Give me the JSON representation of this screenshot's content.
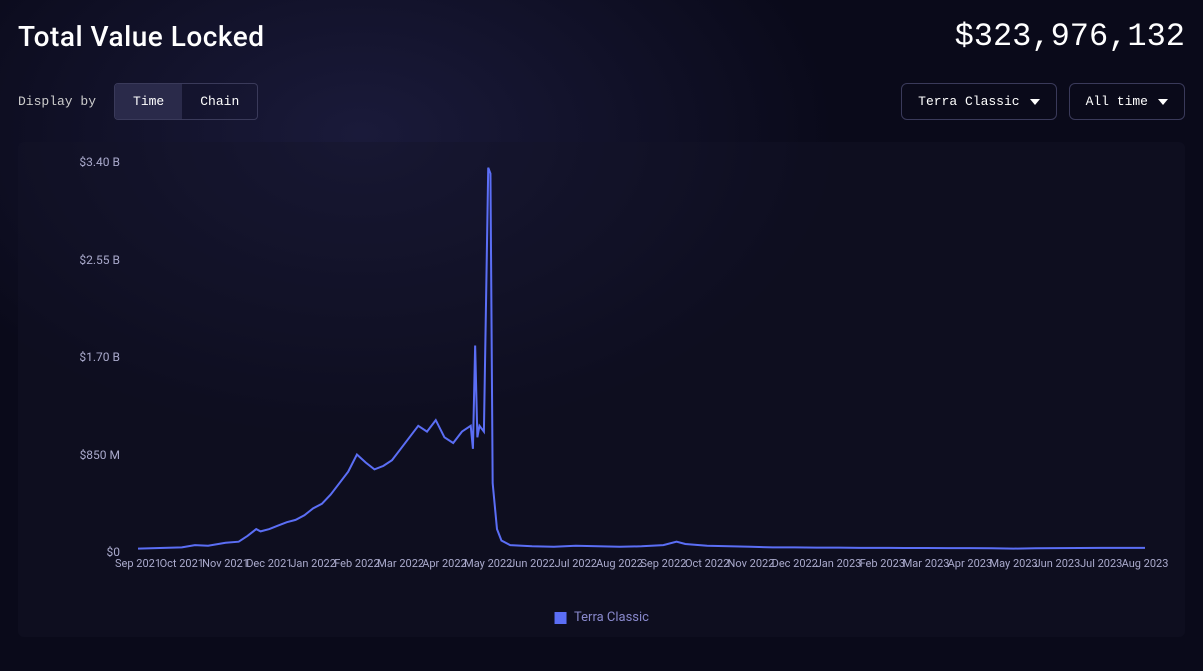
{
  "header": {
    "title": "Total Value Locked",
    "total_value": "$323,976,132"
  },
  "controls": {
    "display_by_label": "Display by",
    "toggle": {
      "time": "Time",
      "chain": "Chain",
      "active": "Time"
    },
    "chain_dropdown": "Terra Classic",
    "time_dropdown": "All time"
  },
  "chart": {
    "type": "line",
    "background_color": "rgba(20,20,40,0.4)",
    "line_color": "#5b6ef5",
    "line_width": 2,
    "text_color": "#aaaacc",
    "legend_label": "Terra Classic",
    "legend_color": "#5b6ef5",
    "y_axis": {
      "ticks": [
        {
          "value": 0,
          "label": "$0"
        },
        {
          "value": 850,
          "label": "$850 M"
        },
        {
          "value": 1700,
          "label": "$1.70 B"
        },
        {
          "value": 2550,
          "label": "$2.55 B"
        },
        {
          "value": 3400,
          "label": "$3.40 B"
        }
      ],
      "min": 0,
      "max": 3400
    },
    "x_axis": {
      "labels": [
        "Sep 2021",
        "Oct 2021",
        "Nov 2021",
        "Dec 2021",
        "Jan 2022",
        "Feb 2022",
        "Mar 2022",
        "Apr 2022",
        "May 2022",
        "Jun 2022",
        "Jul 2022",
        "Aug 2022",
        "Sep 2022",
        "Oct 2022",
        "Nov 2022",
        "Dec 2022",
        "Jan 2023",
        "Feb 2023",
        "Mar 2023",
        "Apr 2023",
        "May 2023",
        "Jun 2023",
        "Jul 2023",
        "Aug 2023"
      ]
    },
    "series": [
      {
        "x": 0.0,
        "y": 30
      },
      {
        "x": 0.5,
        "y": 35
      },
      {
        "x": 1.0,
        "y": 40
      },
      {
        "x": 1.3,
        "y": 60
      },
      {
        "x": 1.6,
        "y": 55
      },
      {
        "x": 2.0,
        "y": 80
      },
      {
        "x": 2.3,
        "y": 90
      },
      {
        "x": 2.5,
        "y": 140
      },
      {
        "x": 2.7,
        "y": 200
      },
      {
        "x": 2.8,
        "y": 180
      },
      {
        "x": 3.0,
        "y": 200
      },
      {
        "x": 3.2,
        "y": 230
      },
      {
        "x": 3.4,
        "y": 260
      },
      {
        "x": 3.6,
        "y": 280
      },
      {
        "x": 3.8,
        "y": 320
      },
      {
        "x": 4.0,
        "y": 380
      },
      {
        "x": 4.2,
        "y": 420
      },
      {
        "x": 4.4,
        "y": 500
      },
      {
        "x": 4.6,
        "y": 600
      },
      {
        "x": 4.8,
        "y": 700
      },
      {
        "x": 5.0,
        "y": 850
      },
      {
        "x": 5.2,
        "y": 780
      },
      {
        "x": 5.4,
        "y": 720
      },
      {
        "x": 5.6,
        "y": 750
      },
      {
        "x": 5.8,
        "y": 800
      },
      {
        "x": 6.0,
        "y": 900
      },
      {
        "x": 6.2,
        "y": 1000
      },
      {
        "x": 6.4,
        "y": 1100
      },
      {
        "x": 6.6,
        "y": 1050
      },
      {
        "x": 6.8,
        "y": 1150
      },
      {
        "x": 7.0,
        "y": 1000
      },
      {
        "x": 7.2,
        "y": 950
      },
      {
        "x": 7.4,
        "y": 1050
      },
      {
        "x": 7.6,
        "y": 1100
      },
      {
        "x": 7.65,
        "y": 900
      },
      {
        "x": 7.7,
        "y": 1800
      },
      {
        "x": 7.75,
        "y": 1000
      },
      {
        "x": 7.8,
        "y": 1100
      },
      {
        "x": 7.9,
        "y": 1050
      },
      {
        "x": 8.0,
        "y": 3350
      },
      {
        "x": 8.05,
        "y": 3300
      },
      {
        "x": 8.1,
        "y": 600
      },
      {
        "x": 8.2,
        "y": 200
      },
      {
        "x": 8.3,
        "y": 100
      },
      {
        "x": 8.5,
        "y": 60
      },
      {
        "x": 9.0,
        "y": 50
      },
      {
        "x": 9.5,
        "y": 45
      },
      {
        "x": 10.0,
        "y": 55
      },
      {
        "x": 10.5,
        "y": 50
      },
      {
        "x": 11.0,
        "y": 45
      },
      {
        "x": 11.5,
        "y": 50
      },
      {
        "x": 12.0,
        "y": 60
      },
      {
        "x": 12.3,
        "y": 90
      },
      {
        "x": 12.5,
        "y": 70
      },
      {
        "x": 13.0,
        "y": 55
      },
      {
        "x": 13.5,
        "y": 50
      },
      {
        "x": 14.0,
        "y": 45
      },
      {
        "x": 14.5,
        "y": 40
      },
      {
        "x": 15.0,
        "y": 40
      },
      {
        "x": 15.5,
        "y": 38
      },
      {
        "x": 16.0,
        "y": 38
      },
      {
        "x": 16.5,
        "y": 36
      },
      {
        "x": 17.0,
        "y": 36
      },
      {
        "x": 17.5,
        "y": 35
      },
      {
        "x": 18.0,
        "y": 35
      },
      {
        "x": 18.5,
        "y": 34
      },
      {
        "x": 19.0,
        "y": 34
      },
      {
        "x": 19.5,
        "y": 33
      },
      {
        "x": 20.0,
        "y": 30
      },
      {
        "x": 20.5,
        "y": 32
      },
      {
        "x": 21.0,
        "y": 34
      },
      {
        "x": 21.5,
        "y": 35
      },
      {
        "x": 22.0,
        "y": 36
      },
      {
        "x": 22.5,
        "y": 36
      },
      {
        "x": 23.0,
        "y": 36
      }
    ]
  }
}
